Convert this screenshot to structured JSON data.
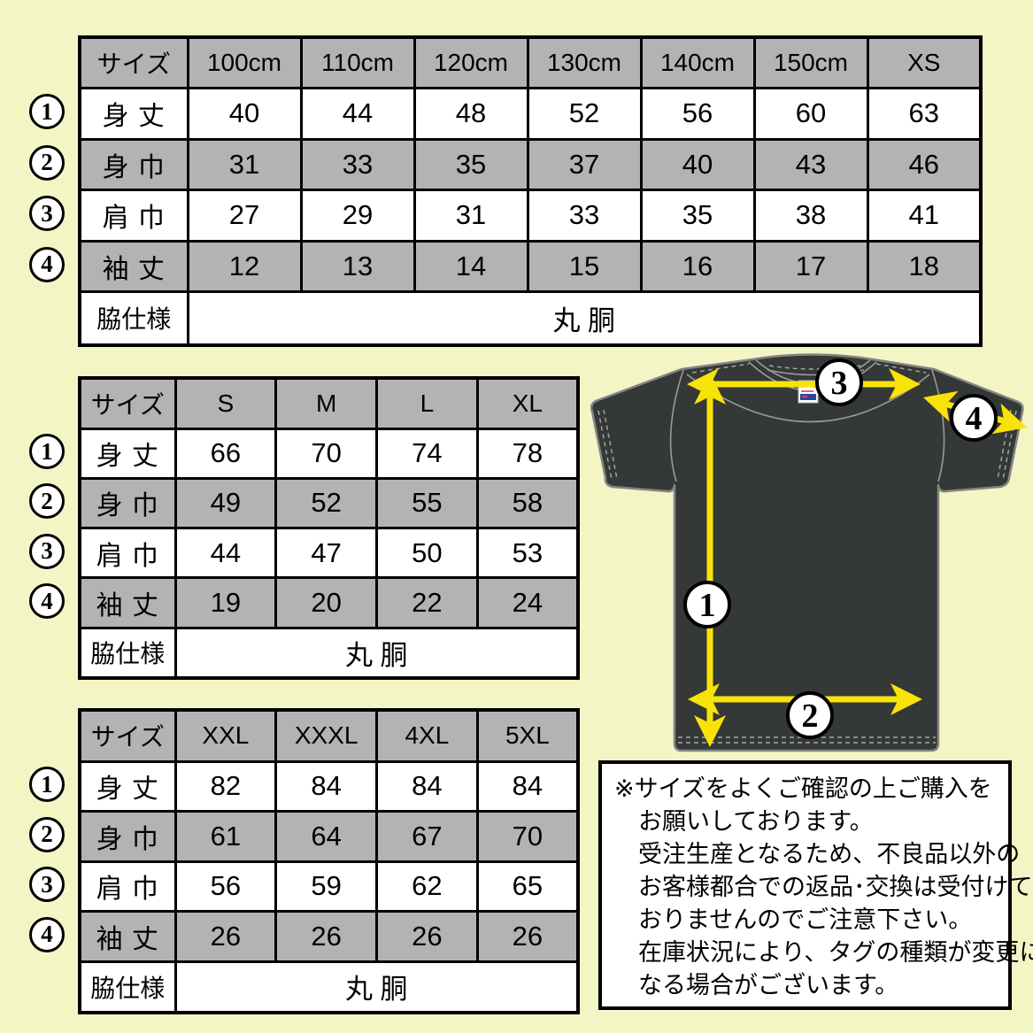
{
  "tables": [
    {
      "name": "kids-sizes",
      "header": [
        "サイズ",
        "100cm",
        "110cm",
        "120cm",
        "130cm",
        "140cm",
        "150cm",
        "XS"
      ],
      "rows": [
        {
          "badge": "1",
          "label": "身 丈",
          "values": [
            "40",
            "44",
            "48",
            "52",
            "56",
            "60",
            "63"
          ]
        },
        {
          "badge": "2",
          "label": "身 巾",
          "values": [
            "31",
            "33",
            "35",
            "37",
            "40",
            "43",
            "46"
          ]
        },
        {
          "badge": "3",
          "label": "肩 巾",
          "values": [
            "27",
            "29",
            "31",
            "33",
            "35",
            "38",
            "41"
          ]
        },
        {
          "badge": "4",
          "label": "袖 丈",
          "values": [
            "12",
            "13",
            "14",
            "15",
            "16",
            "17",
            "18"
          ]
        }
      ],
      "footer_label": "脇仕様",
      "footer_value": "丸 胴"
    },
    {
      "name": "adult-sizes-s-xl",
      "header": [
        "サイズ",
        "S",
        "M",
        "L",
        "XL"
      ],
      "rows": [
        {
          "badge": "1",
          "label": "身 丈",
          "values": [
            "66",
            "70",
            "74",
            "78"
          ]
        },
        {
          "badge": "2",
          "label": "身 巾",
          "values": [
            "49",
            "52",
            "55",
            "58"
          ]
        },
        {
          "badge": "3",
          "label": "肩 巾",
          "values": [
            "44",
            "47",
            "50",
            "53"
          ]
        },
        {
          "badge": "4",
          "label": "袖 丈",
          "values": [
            "19",
            "20",
            "22",
            "24"
          ]
        }
      ],
      "footer_label": "脇仕様",
      "footer_value": "丸 胴"
    },
    {
      "name": "adult-sizes-xxl-5xl",
      "header": [
        "サイズ",
        "XXL",
        "XXXL",
        "4XL",
        "5XL"
      ],
      "rows": [
        {
          "badge": "1",
          "label": "身 丈",
          "values": [
            "82",
            "84",
            "84",
            "84"
          ]
        },
        {
          "badge": "2",
          "label": "身 巾",
          "values": [
            "61",
            "64",
            "67",
            "70"
          ]
        },
        {
          "badge": "3",
          "label": "肩 巾",
          "values": [
            "56",
            "59",
            "62",
            "65"
          ]
        },
        {
          "badge": "4",
          "label": "袖 丈",
          "values": [
            "26",
            "26",
            "26",
            "26"
          ]
        }
      ],
      "footer_label": "脇仕様",
      "footer_value": "丸 胴"
    }
  ],
  "diagram": {
    "markers": [
      "1",
      "2",
      "3",
      "4"
    ]
  },
  "notice": {
    "lines": [
      "※サイズをよくご確認の上ご購入を",
      "お願いしております。",
      "受注生産となるため、不良品以外の",
      "お客様都合での返品･交換は受付けて",
      "おりませんのでご注意下さい。",
      "在庫状況により、タグの種類が変更に",
      "なる場合がございます。"
    ]
  },
  "colors": {
    "background": "#f4f5c5",
    "row_gray": "#b3b3b3",
    "shirt": "#343836",
    "arrow_yellow": "#f8e309"
  }
}
